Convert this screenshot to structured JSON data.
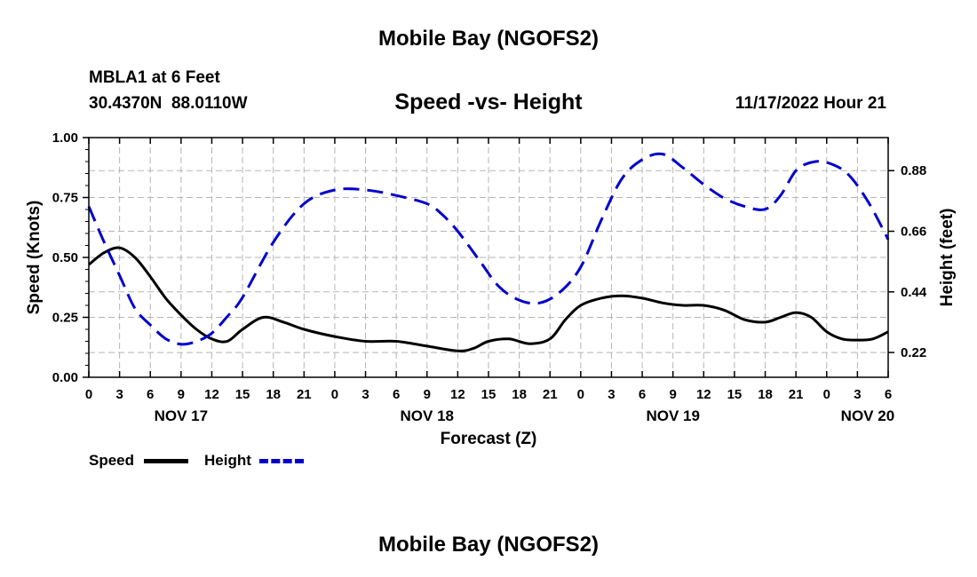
{
  "header": {
    "title": "Mobile Bay (NGOFS2)",
    "station": "MBLA1 at 6 Feet",
    "coords": "30.4370N  88.0110W",
    "subtitle": "Speed -vs- Height",
    "timestamp": "11/17/2022 Hour 21"
  },
  "footer": {
    "repeated_title": "Mobile Bay (NGOFS2)"
  },
  "legend": [
    {
      "label": "Speed",
      "color": "#000000",
      "style": "solid"
    },
    {
      "label": "Height",
      "color": "#0000cc",
      "style": "dashed"
    }
  ],
  "chart_data": {
    "type": "line",
    "title": "Speed -vs- Height",
    "xlabel": "Forecast (Z)",
    "ylabel": "Speed (Knots)",
    "y2label": "Height (feet)",
    "x_unit": "forecast hour from 11/17/2022 00Z",
    "xlim": [
      0,
      78
    ],
    "ylim": [
      0,
      1.0
    ],
    "y2lim": [
      0.13,
      1.0
    ],
    "x_ticks": [
      0,
      3,
      6,
      9,
      12,
      15,
      18,
      21,
      24,
      27,
      30,
      33,
      36,
      39,
      42,
      45,
      48,
      51,
      54,
      57,
      60,
      63,
      66,
      69,
      72,
      75,
      78
    ],
    "x_tick_labels": [
      "0",
      "3",
      "6",
      "9",
      "12",
      "15",
      "18",
      "21",
      "0",
      "3",
      "6",
      "9",
      "12",
      "15",
      "18",
      "21",
      "0",
      "3",
      "6",
      "9",
      "12",
      "15",
      "18",
      "21",
      "0",
      "3",
      "6"
    ],
    "date_labels": [
      {
        "x": 9,
        "label": "NOV 17"
      },
      {
        "x": 33,
        "label": "NOV 18"
      },
      {
        "x": 57,
        "label": "NOV 19"
      },
      {
        "x": 76,
        "label": "NOV 20"
      }
    ],
    "y_ticks": [
      0.0,
      0.25,
      0.5,
      0.75,
      1.0
    ],
    "y_tick_labels": [
      "0.00",
      "0.25",
      "0.50",
      "0.75",
      "1.00"
    ],
    "y2_ticks": [
      0.22,
      0.44,
      0.66,
      0.88
    ],
    "y2_tick_labels": [
      "0.22",
      "0.44",
      "0.66",
      "0.88"
    ],
    "grid": true,
    "series": [
      {
        "name": "Speed",
        "axis": "left",
        "color": "#000000",
        "style": "solid",
        "x": [
          0,
          1.5,
          3,
          4.5,
          6,
          7.5,
          9,
          10.5,
          12,
          13.5,
          15,
          17,
          19,
          21,
          24,
          27,
          30,
          33,
          36,
          37.5,
          39,
          41,
          43,
          45,
          46.5,
          48,
          50,
          52,
          54,
          56,
          58,
          60,
          62,
          64,
          66,
          67.5,
          69,
          70.5,
          72,
          73.5,
          75,
          76.5,
          78
        ],
        "y": [
          0.47,
          0.52,
          0.54,
          0.5,
          0.42,
          0.33,
          0.26,
          0.2,
          0.16,
          0.15,
          0.2,
          0.25,
          0.23,
          0.2,
          0.17,
          0.15,
          0.15,
          0.13,
          0.11,
          0.12,
          0.15,
          0.16,
          0.14,
          0.16,
          0.24,
          0.3,
          0.33,
          0.34,
          0.33,
          0.31,
          0.3,
          0.3,
          0.28,
          0.24,
          0.23,
          0.25,
          0.27,
          0.25,
          0.19,
          0.16,
          0.155,
          0.16,
          0.19
        ]
      },
      {
        "name": "Height",
        "axis": "right",
        "color": "#0000cc",
        "style": "dashed",
        "x": [
          0,
          1.5,
          3,
          4.5,
          6,
          7.5,
          9,
          10.5,
          12,
          13.5,
          15,
          18,
          21,
          24,
          27,
          30,
          33,
          34.5,
          36,
          38,
          40,
          42,
          44,
          46,
          48,
          50,
          52,
          54,
          56,
          58,
          60,
          62,
          64,
          66,
          67.5,
          69,
          70.5,
          72,
          74,
          76,
          78
        ],
        "y": [
          0.75,
          0.62,
          0.5,
          0.38,
          0.32,
          0.27,
          0.25,
          0.26,
          0.29,
          0.35,
          0.42,
          0.62,
          0.76,
          0.81,
          0.81,
          0.79,
          0.76,
          0.72,
          0.66,
          0.56,
          0.46,
          0.41,
          0.4,
          0.44,
          0.53,
          0.7,
          0.85,
          0.92,
          0.94,
          0.89,
          0.83,
          0.78,
          0.75,
          0.74,
          0.79,
          0.88,
          0.91,
          0.91,
          0.87,
          0.77,
          0.63
        ]
      }
    ]
  }
}
